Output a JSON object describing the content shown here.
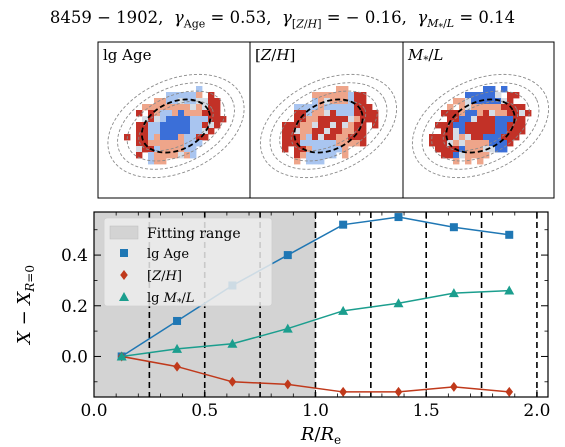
{
  "header": {
    "title": "8459 − 1902,  γ_Age = 0.53,  γ_[Z/H] = − 0.16,  γ_M*/L = 0.14"
  },
  "map_panels": [
    {
      "label": "lg Age"
    },
    {
      "label": "[Z/H]"
    },
    {
      "label": "M*/L"
    }
  ],
  "colors": {
    "age": "#1f77b4",
    "zh": "#c0391b",
    "ml": "#1b9e8e",
    "fitting_range": "#d3d3d3",
    "map_red": "#c23127",
    "map_light_red": "#eea58a",
    "map_blue": "#3b6fd8",
    "map_light_blue": "#a9c5f0",
    "map_grey": "#d6dde6"
  },
  "chart_data": {
    "type": "line",
    "xlabel": "R/Re",
    "ylabel": "X − X_R=0",
    "xlim": [
      0.0,
      2.05
    ],
    "ylim": [
      -0.16,
      0.57
    ],
    "xticks": [
      0.0,
      0.5,
      1.0,
      1.5,
      2.0
    ],
    "xtick_labels": [
      "0.0",
      "0.5",
      "1.0",
      "1.5",
      "2.0"
    ],
    "yticks": [
      0.0,
      0.2,
      0.4
    ],
    "ytick_labels": [
      "0.0",
      "0.2",
      "0.4"
    ],
    "fitting_range": [
      0.0,
      1.0
    ],
    "dashed_lines": [
      0.25,
      0.5,
      0.75,
      1.0,
      1.25,
      1.5,
      1.75,
      2.0
    ],
    "legend": {
      "placement": "top-left",
      "fitting_label": "Fitting range"
    },
    "x": [
      0.125,
      0.375,
      0.625,
      0.875,
      1.125,
      1.375,
      1.625,
      1.875
    ],
    "series": [
      {
        "name": "lg Age",
        "marker": "square",
        "values": [
          0.0,
          0.14,
          0.28,
          0.4,
          0.52,
          0.55,
          0.51,
          0.48
        ]
      },
      {
        "name": "[Z/H]",
        "marker": "diamond",
        "values": [
          0.0,
          -0.04,
          -0.1,
          -0.11,
          -0.14,
          -0.14,
          -0.12,
          -0.14
        ]
      },
      {
        "name": "lg M*/L",
        "marker": "triangle",
        "values": [
          0.0,
          0.03,
          0.05,
          0.11,
          0.18,
          0.21,
          0.25,
          0.26
        ]
      }
    ]
  }
}
